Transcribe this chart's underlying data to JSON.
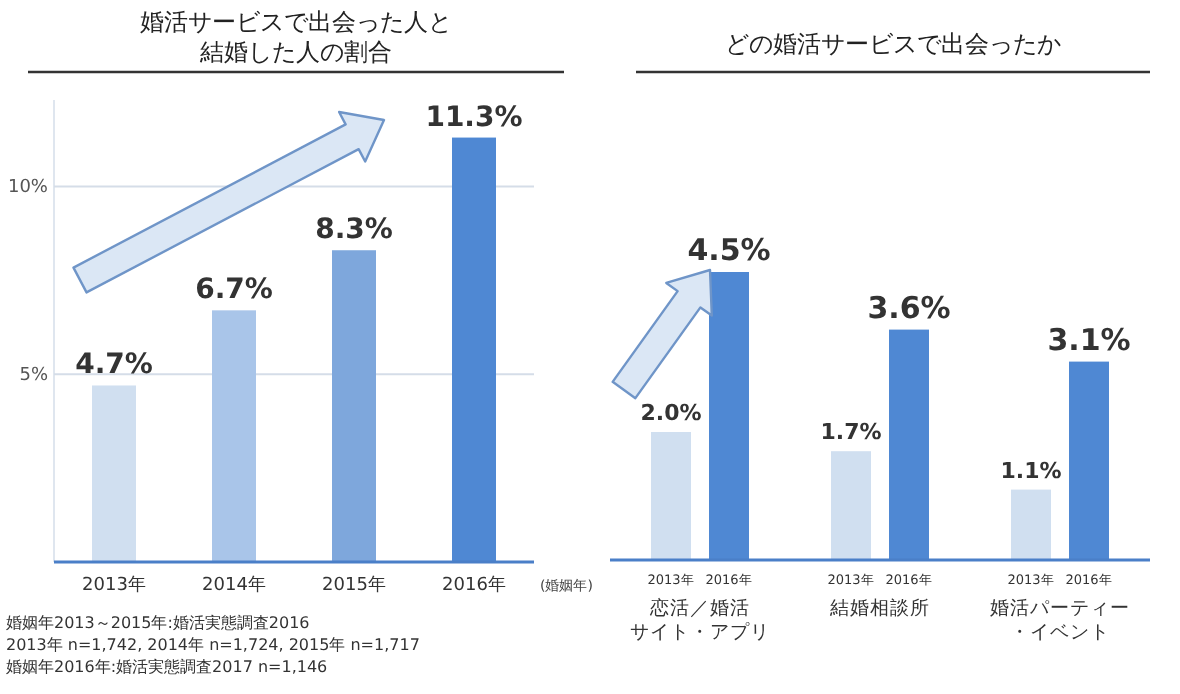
{
  "chart_data": [
    {
      "type": "bar",
      "title": "婚活サービスで出会った人と結婚した人の割合",
      "xlabel": "(婚姻年)",
      "categories": [
        "2013年",
        "2014年",
        "2015年",
        "2016年"
      ],
      "values": [
        4.7,
        6.7,
        8.3,
        11.3
      ],
      "colors": [
        "#d0dff0",
        "#a9c5e9",
        "#7ea7dc",
        "#4f88d3"
      ],
      "ylim": [
        0,
        12.3
      ],
      "yticks": [
        {
          "value": 5,
          "label": "5%"
        },
        {
          "value": 10,
          "label": "10%"
        }
      ],
      "grid": "y",
      "value_labels": [
        "4.7%",
        "6.7%",
        "8.3%",
        "11.3%"
      ],
      "annotations": [
        "婚姻年2013～2015年:婚活実態調査2016",
        "2013年 n=1,742, 2014年 n=1,724, 2015年 n=1,717",
        "婚姻年2016年:婚活実態調査2017 n=1,146"
      ]
    },
    {
      "type": "bar",
      "title": "どの婚活サービスで出会ったか",
      "categories": [
        "恋活／婚活サイト・アプリ",
        "結婚相談所",
        "婚活パーティー・イベント"
      ],
      "series": [
        {
          "name": "2013年",
          "color": "#d0dff0",
          "values": [
            2.0,
            1.7,
            1.1
          ],
          "value_labels": [
            "2.0%",
            "1.7%",
            "1.1%"
          ]
        },
        {
          "name": "2016年",
          "color": "#4f88d3",
          "values": [
            4.5,
            3.6,
            3.1
          ],
          "value_labels": [
            "4.5%",
            "3.6%",
            "3.1%"
          ]
        }
      ]
    }
  ]
}
